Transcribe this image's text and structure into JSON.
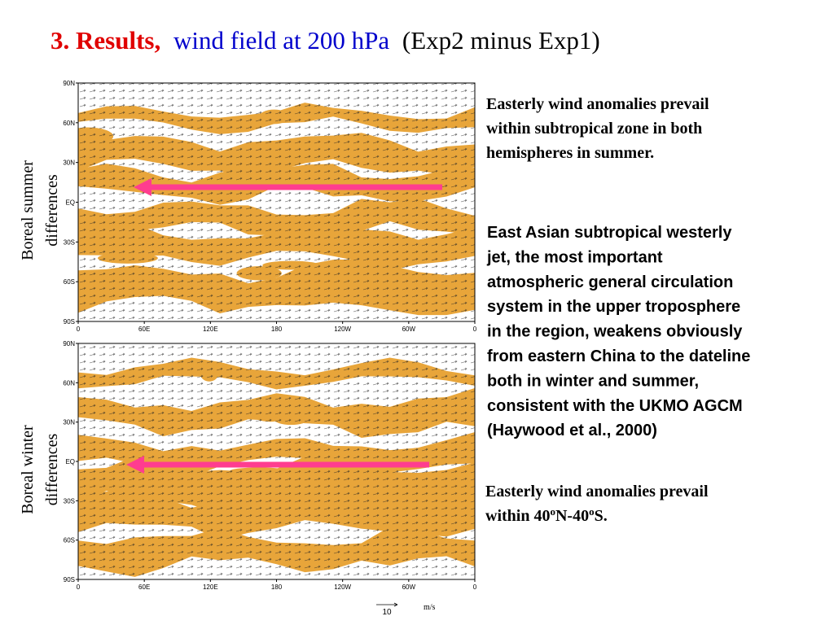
{
  "header": {
    "title_parts": [
      "3. Results,",
      "wind field at 200 hPa",
      "(Exp2 minus Exp1)"
    ]
  },
  "panels": [
    {
      "side_label": [
        "Boreal summer",
        "differences"
      ],
      "lat_labels": [
        "90N",
        "60N",
        "30N",
        "EQ",
        "30S",
        "60S",
        "90S"
      ],
      "lon_labels": [
        "0",
        "60E",
        "120E",
        "180",
        "120W",
        "60W",
        "0"
      ]
    },
    {
      "side_label": [
        "Boreal winter",
        "differences"
      ],
      "lat_labels": [
        "90N",
        "60N",
        "30N",
        "EQ",
        "30S",
        "60S",
        "90S"
      ],
      "lon_labels": [
        "0",
        "60E",
        "120E",
        "180",
        "120W",
        "60W",
        "0"
      ]
    }
  ],
  "notes": [
    {
      "lines": [
        "Easterly wind anomalies prevail",
        "within subtropical zone in both",
        "hemispheres in summer."
      ]
    },
    {
      "lines": [
        "East Asian subtropical westerly",
        "jet, the most important",
        "atmospheric general circulation",
        "system in the upper troposphere",
        "in the region, weakens obviously",
        "from eastern China to the dateline",
        "both in winter and summer,",
        "consistent with the UKMO AGCM",
        "(Haywood et al., 2000)"
      ]
    },
    {
      "lines": [
        "Easterly wind anomalies prevail"
      ],
      "last_line_parts": [
        "within 40",
        "o",
        "N-40",
        "o",
        "S."
      ]
    }
  ],
  "legend": {
    "value": "10",
    "unit": "m/s"
  }
}
